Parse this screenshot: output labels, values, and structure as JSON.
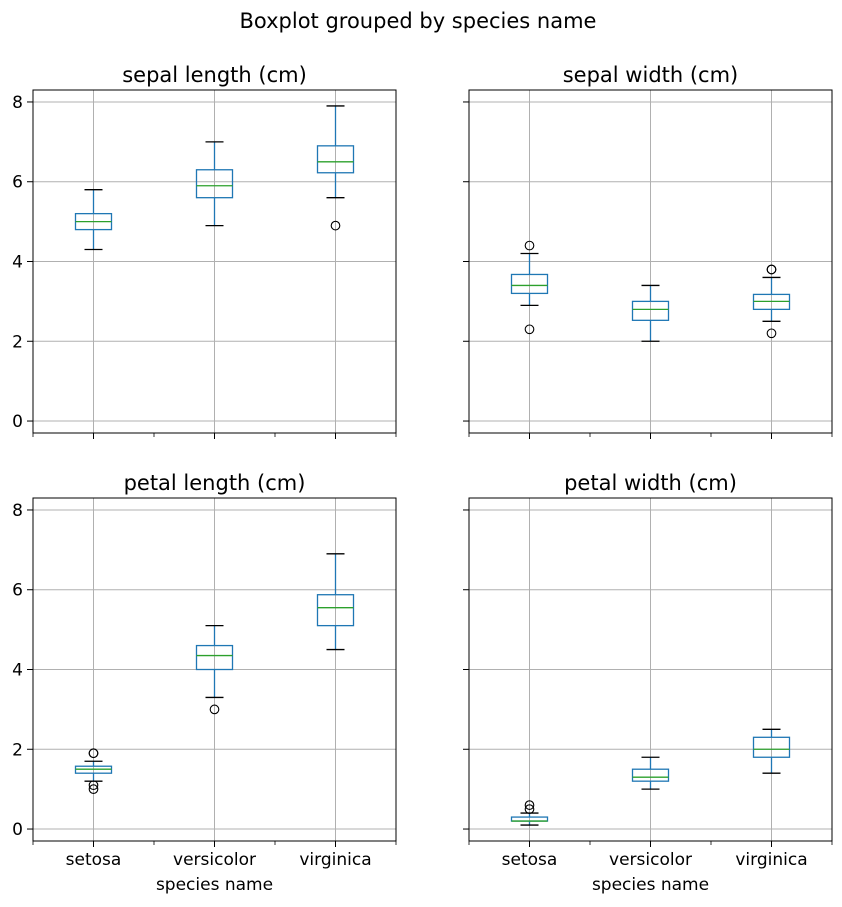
{
  "suptitle": "Boxplot grouped by species name",
  "chart_data": [
    {
      "type": "box",
      "title": "sepal length (cm)",
      "xlabel": "",
      "categories": [
        "setosa",
        "versicolor",
        "virginica"
      ],
      "ylim": [
        -0.3,
        8.3
      ],
      "yticks": [
        0,
        2,
        4,
        6,
        8
      ],
      "grid": true,
      "boxes": [
        {
          "whislo": 4.3,
          "q1": 4.8,
          "med": 5.0,
          "q3": 5.2,
          "whishi": 5.8,
          "fliers": []
        },
        {
          "whislo": 4.9,
          "q1": 5.6,
          "med": 5.9,
          "q3": 6.3,
          "whishi": 7.0,
          "fliers": []
        },
        {
          "whislo": 5.6,
          "q1": 6.225,
          "med": 6.5,
          "q3": 6.9,
          "whishi": 7.9,
          "fliers": [
            4.9
          ]
        }
      ]
    },
    {
      "type": "box",
      "title": "sepal width (cm)",
      "xlabel": "",
      "categories": [
        "setosa",
        "versicolor",
        "virginica"
      ],
      "ylim": [
        -0.3,
        8.3
      ],
      "yticks": [
        0,
        2,
        4,
        6,
        8
      ],
      "grid": true,
      "boxes": [
        {
          "whislo": 2.9,
          "q1": 3.2,
          "med": 3.4,
          "q3": 3.675,
          "whishi": 4.2,
          "fliers": [
            2.3,
            4.4
          ]
        },
        {
          "whislo": 2.0,
          "q1": 2.525,
          "med": 2.8,
          "q3": 3.0,
          "whishi": 3.4,
          "fliers": []
        },
        {
          "whislo": 2.5,
          "q1": 2.8,
          "med": 3.0,
          "q3": 3.175,
          "whishi": 3.6,
          "fliers": [
            2.2,
            3.8,
            3.8
          ]
        }
      ]
    },
    {
      "type": "box",
      "title": "petal length (cm)",
      "xlabel": "species name",
      "categories": [
        "setosa",
        "versicolor",
        "virginica"
      ],
      "ylim": [
        -0.3,
        8.3
      ],
      "yticks": [
        0,
        2,
        4,
        6,
        8
      ],
      "grid": true,
      "boxes": [
        {
          "whislo": 1.2,
          "q1": 1.4,
          "med": 1.5,
          "q3": 1.575,
          "whishi": 1.7,
          "fliers": [
            1.0,
            1.1,
            1.9,
            1.9
          ]
        },
        {
          "whislo": 3.3,
          "q1": 4.0,
          "med": 4.35,
          "q3": 4.6,
          "whishi": 5.1,
          "fliers": [
            3.0
          ]
        },
        {
          "whislo": 4.5,
          "q1": 5.1,
          "med": 5.55,
          "q3": 5.875,
          "whishi": 6.9,
          "fliers": []
        }
      ]
    },
    {
      "type": "box",
      "title": "petal width (cm)",
      "xlabel": "species name",
      "categories": [
        "setosa",
        "versicolor",
        "virginica"
      ],
      "ylim": [
        -0.3,
        8.3
      ],
      "yticks": [
        0,
        2,
        4,
        6,
        8
      ],
      "grid": true,
      "boxes": [
        {
          "whislo": 0.1,
          "q1": 0.2,
          "med": 0.2,
          "q3": 0.3,
          "whishi": 0.4,
          "fliers": [
            0.5,
            0.6
          ]
        },
        {
          "whislo": 1.0,
          "q1": 1.2,
          "med": 1.3,
          "q3": 1.5,
          "whishi": 1.8,
          "fliers": []
        },
        {
          "whislo": 1.4,
          "q1": 1.8,
          "med": 2.0,
          "q3": 2.3,
          "whishi": 2.5,
          "fliers": []
        }
      ]
    }
  ],
  "colors": {
    "box": "#1f77b4",
    "median": "#2ca02c",
    "whisker_cap": "#000000",
    "grid": "#b0b0b0",
    "flier": "#000000"
  }
}
